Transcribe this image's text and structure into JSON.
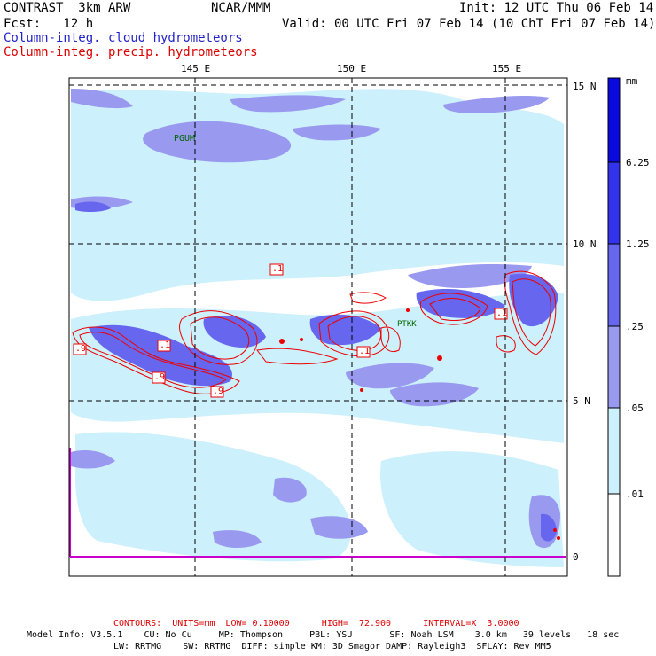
{
  "header": {
    "left1": "CONTRAST  3km ARW",
    "left2": "Fcst:   12 h",
    "center1": "NCAR/MMM",
    "right1": "Init: 12 UTC Thu 06 Feb 14",
    "right2": "Valid: 00 UTC Fri 07 Feb 14 (10 ChT Fri 07 Feb 14)",
    "legend_cloud": "Column-integ. cloud hydrometeors",
    "legend_precip": "Column-integ. precip. hydrometeors"
  },
  "axes": {
    "lon_labels": [
      "145 E",
      "150 E",
      "155 E"
    ],
    "lat_labels": [
      "15 N",
      "10 N",
      "5 N",
      "0"
    ]
  },
  "stations": [
    "PGUM",
    "PTKK"
  ],
  "contour_labels": [
    ".1",
    ".1",
    ".1",
    ".9",
    ".9",
    ".9",
    ".1"
  ],
  "colorbar": {
    "unit": "mm",
    "ticks": [
      "6.25",
      "1.25",
      ".25",
      ".05",
      ".01"
    ],
    "colors": [
      "#0a0ae0",
      "#3333ee",
      "#6666ee",
      "#9999f0",
      "#ccf0fc",
      "#ffffff"
    ]
  },
  "footer": {
    "contours": "CONTOURS:  UNITS=mm  LOW= 0.10000      HIGH=  72.900      INTERVAL=X  3.0000",
    "model1": "Model Info: V3.5.1    CU: No Cu     MP: Thompson     PBL: YSU       SF: Noah LSM    3.0 km   39 levels   18 sec",
    "model2": "LW: RRTMG    SW: RRTMG  DIFF: simple KM: 3D Smagor DAMP: Rayleigh3  SFLAY: Rev MM5"
  },
  "colors": {
    "cloud_light": "#ccf0fc",
    "cloud_mid": "#9999f0",
    "cloud_dark": "#6666ee",
    "precip_contour": "#ee0000",
    "equator_line": "#cc00cc"
  }
}
